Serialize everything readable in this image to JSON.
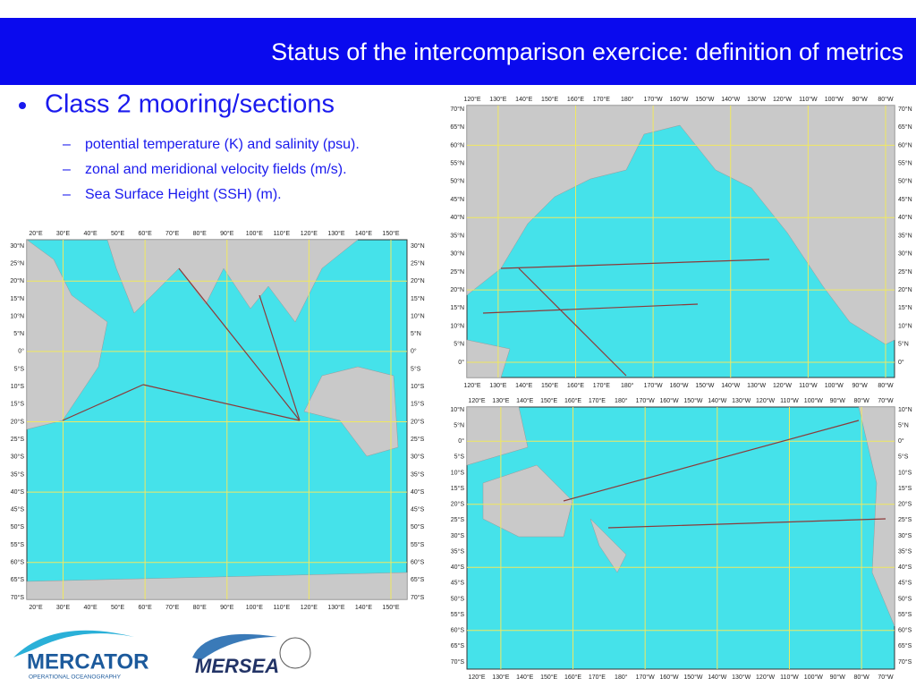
{
  "header": {
    "title": "Status of the intercomparison exercice: definition of metrics"
  },
  "bullets": {
    "main": "Class 2 mooring/sections",
    "sub": [
      "potential temperature (K) and salinity (psu).",
      "zonal and meridional velocity fields (m/s).",
      "Sea Surface Height (SSH) (m)."
    ]
  },
  "maps": [
    {
      "x_labels": [
        "20°E",
        "30°E",
        "40°E",
        "50°E",
        "60°E",
        "70°E",
        "80°E",
        "90°E",
        "100°E",
        "110°E",
        "120°E",
        "130°E",
        "140°E",
        "150°E"
      ],
      "y_labels": [
        "30°N",
        "25°N",
        "20°N",
        "15°N",
        "10°N",
        "5°N",
        "0°",
        "5°S",
        "10°S",
        "15°S",
        "20°S",
        "25°S",
        "30°S",
        "35°S",
        "40°S",
        "45°S",
        "50°S",
        "55°S",
        "60°S",
        "65°S",
        "70°S"
      ]
    },
    {
      "x_labels": [
        "120°E",
        "130°E",
        "140°E",
        "150°E",
        "160°E",
        "170°E",
        "180°",
        "170°W",
        "160°W",
        "150°W",
        "140°W",
        "130°W",
        "120°W",
        "110°W",
        "100°W",
        "90°W",
        "80°W"
      ],
      "y_labels": [
        "70°N",
        "65°N",
        "60°N",
        "55°N",
        "50°N",
        "45°N",
        "40°N",
        "35°N",
        "30°N",
        "25°N",
        "20°N",
        "15°N",
        "10°N",
        "5°N",
        "0°"
      ]
    },
    {
      "x_labels": [
        "120°E",
        "130°E",
        "140°E",
        "150°E",
        "160°E",
        "170°E",
        "180°",
        "170°W",
        "160°W",
        "150°W",
        "140°W",
        "130°W",
        "120°W",
        "110°W",
        "100°W",
        "90°W",
        "80°W",
        "70°W"
      ],
      "y_labels": [
        "10°N",
        "5°N",
        "0°",
        "5°S",
        "10°S",
        "15°S",
        "20°S",
        "25°S",
        "30°S",
        "35°S",
        "40°S",
        "45°S",
        "50°S",
        "55°S",
        "60°S",
        "65°S",
        "70°S"
      ]
    }
  ],
  "logos": {
    "mercator": "MERCATOR",
    "mercator_sub": "OPERATIONAL OCEANOGRAPHY",
    "mersea": "MERSEA"
  }
}
